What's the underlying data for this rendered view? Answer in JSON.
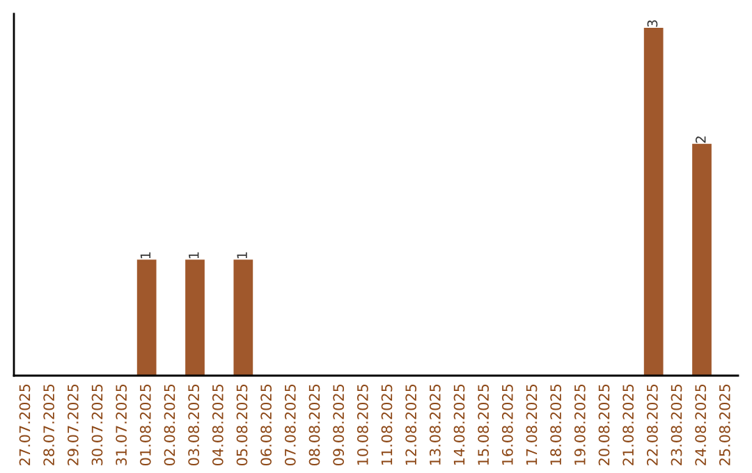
{
  "chart_data": {
    "type": "bar",
    "categories": [
      "27.07.2025",
      "28.07.2025",
      "29.07.2025",
      "30.07.2025",
      "31.07.2025",
      "01.08.2025",
      "02.08.2025",
      "03.08.2025",
      "04.08.2025",
      "05.08.2025",
      "06.08.2025",
      "07.08.2025",
      "08.08.2025",
      "09.08.2025",
      "10.08.2025",
      "11.08.2025",
      "12.08.2025",
      "13.08.2025",
      "14.08.2025",
      "15.08.2025",
      "16.08.2025",
      "17.08.2025",
      "18.08.2025",
      "19.08.2025",
      "20.08.2025",
      "21.08.2025",
      "22.08.2025",
      "23.08.2025",
      "24.08.2025",
      "25.08.2025"
    ],
    "values": [
      0,
      0,
      0,
      0,
      0,
      1,
      0,
      1,
      0,
      1,
      0,
      0,
      0,
      0,
      0,
      0,
      0,
      0,
      0,
      0,
      0,
      0,
      0,
      0,
      0,
      0,
      3,
      0,
      2,
      0
    ],
    "color": "#a0582c",
    "value_labels": [
      null,
      null,
      null,
      null,
      null,
      "1",
      null,
      "1",
      null,
      "1",
      null,
      null,
      null,
      null,
      null,
      null,
      null,
      null,
      null,
      null,
      null,
      null,
      null,
      null,
      null,
      null,
      "3",
      null,
      "2",
      null
    ],
    "tick_labels": "x",
    "grid": false,
    "legend": false
  }
}
